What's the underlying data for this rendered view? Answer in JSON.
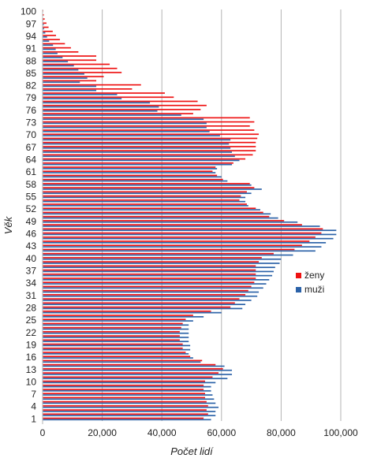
{
  "chart_data": {
    "type": "bar",
    "orientation": "horizontal",
    "title": "",
    "xlabel": "Počet lidí",
    "ylabel": "Věk",
    "xlim": [
      0,
      100000
    ],
    "x_ticks": [
      "0",
      "20,000",
      "40,000",
      "60,000",
      "80,000",
      "100,000"
    ],
    "x_tick_values": [
      0,
      20000,
      40000,
      60000,
      80000,
      100000
    ],
    "y_ticks": [
      1,
      4,
      7,
      10,
      13,
      16,
      19,
      22,
      25,
      28,
      31,
      34,
      37,
      40,
      43,
      46,
      49,
      52,
      55,
      58,
      61,
      64,
      67,
      70,
      73,
      76,
      79,
      82,
      85,
      88,
      91,
      94,
      97,
      100
    ],
    "grid": "vertical",
    "legend_position": "right",
    "categories": [
      1,
      2,
      3,
      4,
      5,
      6,
      7,
      8,
      9,
      10,
      11,
      12,
      13,
      14,
      15,
      16,
      17,
      18,
      19,
      20,
      21,
      22,
      23,
      24,
      25,
      26,
      27,
      28,
      29,
      30,
      31,
      32,
      33,
      34,
      35,
      36,
      37,
      38,
      39,
      40,
      41,
      42,
      43,
      44,
      45,
      46,
      47,
      48,
      49,
      50,
      51,
      52,
      53,
      54,
      55,
      56,
      57,
      58,
      59,
      60,
      61,
      62,
      63,
      64,
      65,
      66,
      67,
      68,
      69,
      70,
      71,
      72,
      73,
      74,
      75,
      76,
      77,
      78,
      79,
      80,
      81,
      82,
      83,
      84,
      85,
      86,
      87,
      88,
      89,
      90,
      91,
      92,
      93,
      94,
      95,
      96,
      97,
      98,
      99,
      100
    ],
    "series": [
      {
        "name": "ženy",
        "color": "#ee1111",
        "values": [
          54000,
          55500,
          55000,
          55500,
          55000,
          54500,
          54500,
          54000,
          54000,
          54500,
          57000,
          59000,
          60500,
          58000,
          53500,
          49500,
          48000,
          47000,
          47000,
          46000,
          46000,
          46000,
          46500,
          47000,
          48000,
          50500,
          56500,
          63000,
          64500,
          66000,
          68000,
          69000,
          70000,
          71000,
          71500,
          71500,
          71500,
          71500,
          72500,
          73500,
          77500,
          84500,
          87000,
          89500,
          91500,
          93500,
          94000,
          87000,
          81000,
          76000,
          74000,
          71500,
          68500,
          66000,
          66500,
          68500,
          71000,
          69500,
          60500,
          58500,
          57000,
          58000,
          64000,
          68000,
          70500,
          71500,
          71500,
          71500,
          72000,
          72500,
          71000,
          69500,
          71000,
          69500,
          50500,
          53000,
          55000,
          52000,
          44000,
          41000,
          30000,
          33000,
          18000,
          20500,
          26500,
          25000,
          22500,
          18000,
          18000,
          12000,
          9500,
          7500,
          5800,
          4500,
          3400,
          2000,
          1300,
          700,
          400,
          200
        ]
      },
      {
        "name": "muži",
        "color": "#2b62a8",
        "values": [
          56500,
          58000,
          58000,
          59000,
          58000,
          57500,
          57000,
          56500,
          56500,
          58000,
          62000,
          63500,
          63500,
          61000,
          53000,
          50500,
          49000,
          49500,
          49500,
          49000,
          49000,
          49000,
          49000,
          49000,
          50500,
          54000,
          60000,
          67000,
          68000,
          70000,
          72000,
          72500,
          74000,
          75000,
          76000,
          77000,
          77500,
          78000,
          79500,
          80000,
          84000,
          91500,
          93500,
          95000,
          97500,
          98500,
          98500,
          93000,
          85500,
          79000,
          76500,
          73000,
          69000,
          68000,
          68000,
          70000,
          73500,
          70000,
          62000,
          60000,
          58000,
          58500,
          63500,
          66000,
          64500,
          63500,
          63000,
          62500,
          63000,
          59500,
          56000,
          55000,
          55000,
          54000,
          46500,
          38500,
          39000,
          36000,
          26500,
          25000,
          18000,
          18000,
          12500,
          15000,
          14000,
          12000,
          10500,
          8500,
          6700,
          5000,
          4400,
          3500,
          2200,
          1500,
          900,
          500,
          400,
          200,
          100,
          50
        ]
      }
    ]
  }
}
